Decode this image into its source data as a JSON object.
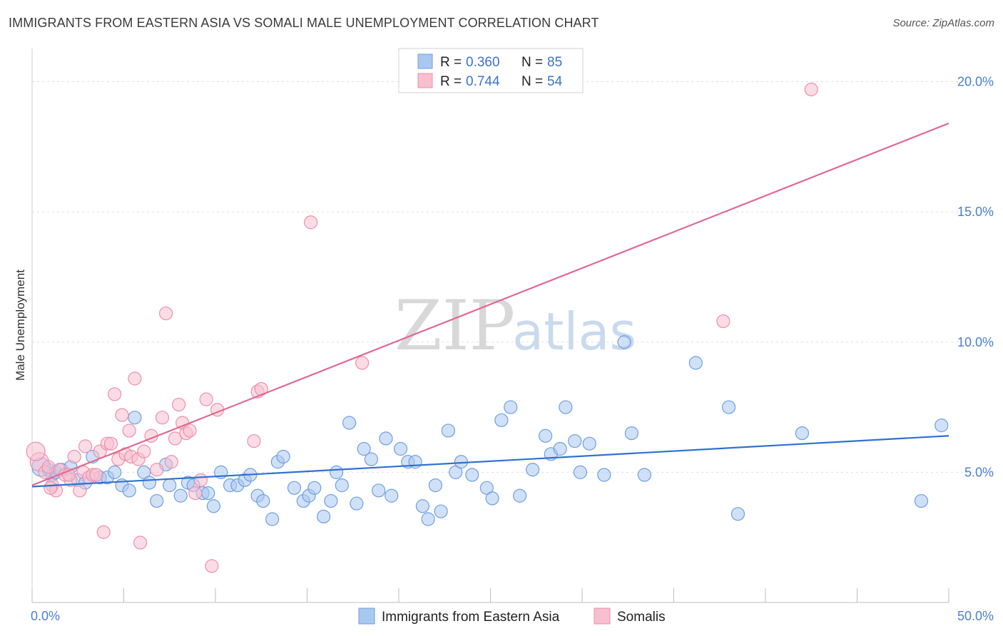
{
  "header": {
    "title": "IMMIGRANTS FROM EASTERN ASIA VS SOMALI MALE UNEMPLOYMENT CORRELATION CHART",
    "source": "Source: ZipAtlas.com"
  },
  "watermark": {
    "zip": "ZIP",
    "atlas": "atlas"
  },
  "chart_data": {
    "type": "scatter",
    "title": "IMMIGRANTS FROM EASTERN ASIA VS SOMALI MALE UNEMPLOYMENT CORRELATION CHART",
    "xlabel": "",
    "ylabel": "Male Unemployment",
    "xlim": [
      0,
      50
    ],
    "ylim": [
      0,
      21
    ],
    "x_tick_labels": [
      "0.0%",
      "50.0%"
    ],
    "y_ticks": [
      5,
      10,
      15,
      20
    ],
    "y_tick_labels": [
      "5.0%",
      "10.0%",
      "15.0%",
      "20.0%"
    ],
    "grid": true,
    "legend_position": "top-center",
    "series": [
      {
        "name": "Immigrants from Eastern Asia",
        "color": "#a9c8f0",
        "stroke": "#6e9fe0",
        "line_color": "#2f72d0",
        "R": "0.360",
        "N": "85",
        "trend": [
          [
            0,
            4.45
          ],
          [
            50,
            6.4
          ]
        ],
        "points": [
          [
            0.5,
            5.2
          ],
          [
            0.9,
            5.1
          ],
          [
            1.1,
            4.9
          ],
          [
            1.3,
            5.0
          ],
          [
            1.6,
            5.1
          ],
          [
            2.1,
            5.2
          ],
          [
            2.5,
            4.7
          ],
          [
            2.9,
            4.6
          ],
          [
            3.3,
            5.6
          ],
          [
            3.7,
            4.8
          ],
          [
            4.1,
            4.8
          ],
          [
            4.5,
            5.0
          ],
          [
            4.9,
            4.5
          ],
          [
            5.3,
            4.3
          ],
          [
            5.6,
            7.1
          ],
          [
            6.1,
            5.0
          ],
          [
            6.4,
            4.6
          ],
          [
            6.8,
            3.9
          ],
          [
            7.3,
            5.3
          ],
          [
            7.5,
            4.5
          ],
          [
            8.1,
            4.1
          ],
          [
            8.5,
            4.6
          ],
          [
            8.8,
            4.5
          ],
          [
            9.3,
            4.2
          ],
          [
            9.6,
            4.2
          ],
          [
            9.9,
            3.7
          ],
          [
            10.3,
            5.0
          ],
          [
            10.8,
            4.5
          ],
          [
            11.2,
            4.5
          ],
          [
            11.6,
            4.7
          ],
          [
            11.9,
            4.9
          ],
          [
            12.3,
            4.1
          ],
          [
            12.6,
            3.9
          ],
          [
            13.1,
            3.2
          ],
          [
            13.4,
            5.4
          ],
          [
            13.7,
            5.6
          ],
          [
            14.3,
            4.4
          ],
          [
            14.8,
            3.9
          ],
          [
            15.1,
            4.1
          ],
          [
            15.4,
            4.4
          ],
          [
            15.9,
            3.3
          ],
          [
            16.3,
            3.9
          ],
          [
            16.6,
            5.0
          ],
          [
            16.9,
            4.5
          ],
          [
            17.3,
            6.9
          ],
          [
            17.7,
            3.8
          ],
          [
            18.1,
            5.9
          ],
          [
            18.5,
            5.5
          ],
          [
            18.9,
            4.3
          ],
          [
            19.3,
            6.3
          ],
          [
            19.6,
            4.1
          ],
          [
            20.1,
            5.9
          ],
          [
            20.5,
            5.4
          ],
          [
            20.9,
            5.4
          ],
          [
            21.3,
            3.7
          ],
          [
            21.6,
            3.2
          ],
          [
            22.0,
            4.5
          ],
          [
            22.3,
            3.5
          ],
          [
            22.7,
            6.6
          ],
          [
            23.1,
            5.0
          ],
          [
            23.4,
            5.4
          ],
          [
            24.0,
            4.9
          ],
          [
            24.8,
            4.4
          ],
          [
            25.1,
            4.0
          ],
          [
            25.6,
            7.0
          ],
          [
            26.1,
            7.5
          ],
          [
            26.6,
            4.1
          ],
          [
            27.3,
            5.1
          ],
          [
            28.0,
            6.4
          ],
          [
            28.3,
            5.7
          ],
          [
            28.8,
            5.9
          ],
          [
            29.1,
            7.5
          ],
          [
            29.6,
            6.2
          ],
          [
            29.9,
            5.0
          ],
          [
            30.4,
            6.1
          ],
          [
            31.2,
            4.9
          ],
          [
            32.3,
            10.0
          ],
          [
            32.7,
            6.5
          ],
          [
            33.4,
            4.9
          ],
          [
            36.2,
            9.2
          ],
          [
            38.0,
            7.5
          ],
          [
            38.5,
            3.4
          ],
          [
            42.0,
            6.5
          ],
          [
            48.5,
            3.9
          ],
          [
            49.6,
            6.8
          ]
        ]
      },
      {
        "name": "Somalis",
        "color": "#f7bfd0",
        "stroke": "#ec8fae",
        "line_color": "#e0698f",
        "R": "0.744",
        "N": "54",
        "trend": [
          [
            0,
            4.5
          ],
          [
            50,
            18.4
          ]
        ],
        "points": [
          [
            0.4,
            5.4
          ],
          [
            0.7,
            5.0
          ],
          [
            0.9,
            5.2
          ],
          [
            1.1,
            4.5
          ],
          [
            1.3,
            4.3
          ],
          [
            1.5,
            5.1
          ],
          [
            1.8,
            4.9
          ],
          [
            2.1,
            4.7
          ],
          [
            2.3,
            5.6
          ],
          [
            2.6,
            4.3
          ],
          [
            2.8,
            5.0
          ],
          [
            2.9,
            6.0
          ],
          [
            3.1,
            4.8
          ],
          [
            3.3,
            4.9
          ],
          [
            3.5,
            4.9
          ],
          [
            3.7,
            5.8
          ],
          [
            3.9,
            2.7
          ],
          [
            4.1,
            6.1
          ],
          [
            4.3,
            6.1
          ],
          [
            4.5,
            8.0
          ],
          [
            4.7,
            5.5
          ],
          [
            4.9,
            7.2
          ],
          [
            5.1,
            5.7
          ],
          [
            5.3,
            6.6
          ],
          [
            5.4,
            5.6
          ],
          [
            5.6,
            8.6
          ],
          [
            5.8,
            5.5
          ],
          [
            5.9,
            2.3
          ],
          [
            6.1,
            5.8
          ],
          [
            6.5,
            6.4
          ],
          [
            6.8,
            5.1
          ],
          [
            7.1,
            7.1
          ],
          [
            7.3,
            11.1
          ],
          [
            7.6,
            5.4
          ],
          [
            7.8,
            6.3
          ],
          [
            8.0,
            7.6
          ],
          [
            8.2,
            6.9
          ],
          [
            8.4,
            6.5
          ],
          [
            8.6,
            6.6
          ],
          [
            8.9,
            4.2
          ],
          [
            9.2,
            4.7
          ],
          [
            9.5,
            7.8
          ],
          [
            9.8,
            1.4
          ],
          [
            10.1,
            7.4
          ],
          [
            12.1,
            6.2
          ],
          [
            12.3,
            8.1
          ],
          [
            12.5,
            8.2
          ],
          [
            15.2,
            14.6
          ],
          [
            18.0,
            9.2
          ],
          [
            37.7,
            10.8
          ],
          [
            42.5,
            19.7
          ],
          [
            0.2,
            5.8
          ],
          [
            1.0,
            4.4
          ],
          [
            2.0,
            4.9
          ]
        ]
      }
    ]
  }
}
